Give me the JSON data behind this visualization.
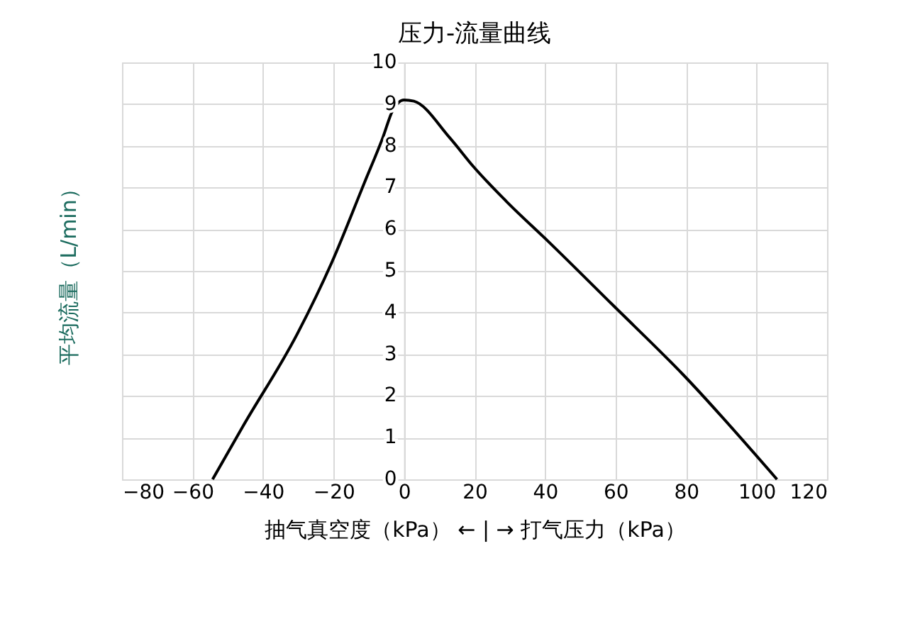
{
  "chart_data": {
    "type": "line",
    "title": "压力-流量曲线",
    "xlabel": "抽气真空度（kPa） ← | → 打气压力（kPa）",
    "ylabel": "平均流量（L/min）",
    "x": [
      -54.3,
      -45.5,
      -30.2,
      -20.5,
      -11.3,
      -6,
      -3.2,
      0,
      2.8,
      12.9,
      19.7,
      29,
      41,
      59,
      79.3,
      105.8
    ],
    "values": [
      0,
      1.3,
      3.5,
      5.2,
      7.1,
      8.2,
      8.85,
      9.1,
      9.07,
      8.2,
      7.5,
      6.67,
      5.7,
      4.2,
      2.5,
      0
    ],
    "color": "#000000",
    "xlim": [
      -80,
      120
    ],
    "ylim": [
      0,
      10
    ],
    "xticks": [
      -80,
      -60,
      -40,
      -20,
      0,
      20,
      40,
      60,
      80,
      100,
      120
    ],
    "yticks": [
      0,
      1,
      2,
      3,
      4,
      5,
      6,
      7,
      8,
      9,
      10
    ],
    "grid": true
  }
}
